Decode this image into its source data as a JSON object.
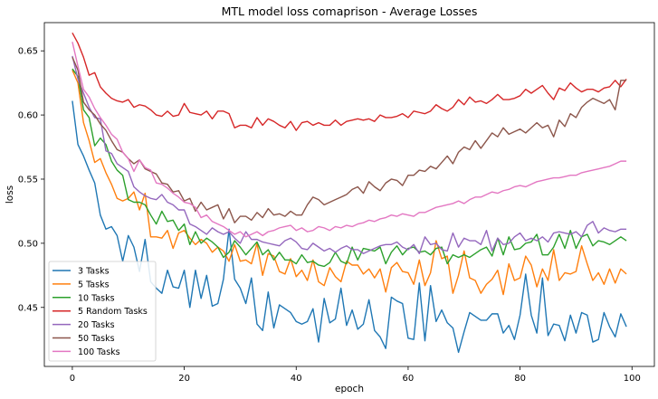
{
  "chart_data": {
    "type": "line",
    "title": "MTL model loss comaprison - Average Losses",
    "xlabel": "epoch",
    "ylabel": "loss",
    "xlim": [
      -5,
      104
    ],
    "ylim": [
      0.404,
      0.672
    ],
    "xticks": [
      0,
      20,
      40,
      60,
      80,
      100
    ],
    "yticks": [
      0.45,
      0.5,
      0.55,
      0.6,
      0.65
    ],
    "xtick_labels": [
      "0",
      "20",
      "40",
      "60",
      "80",
      "100"
    ],
    "ytick_labels": [
      "0.45",
      "0.50",
      "0.55",
      "0.60",
      "0.65"
    ],
    "grid": false,
    "legend": "lower-left",
    "series": [
      {
        "name": "3 Tasks",
        "color": "#1f77b4",
        "values": [
          0.611,
          0.577,
          0.568,
          0.557,
          0.547,
          0.522,
          0.511,
          0.513,
          0.506,
          0.486,
          0.506,
          0.497,
          0.478,
          0.503,
          0.47,
          0.465,
          0.461,
          0.479,
          0.466,
          0.465,
          0.479,
          0.45,
          0.479,
          0.457,
          0.475,
          0.451,
          0.453,
          0.472,
          0.511,
          0.472,
          0.465,
          0.453,
          0.473,
          0.437,
          0.432,
          0.462,
          0.434,
          0.452,
          0.449,
          0.446,
          0.439,
          0.437,
          0.439,
          0.449,
          0.423,
          0.457,
          0.438,
          0.441,
          0.465,
          0.436,
          0.448,
          0.433,
          0.437,
          0.456,
          0.432,
          0.427,
          0.418,
          0.458,
          0.455,
          0.453,
          0.426,
          0.425,
          0.469,
          0.424,
          0.467,
          0.439,
          0.448,
          0.438,
          0.434,
          0.415,
          0.431,
          0.446,
          0.443,
          0.44,
          0.44,
          0.445,
          0.445,
          0.43,
          0.436,
          0.425,
          0.444,
          0.476,
          0.444,
          0.43,
          0.473,
          0.428,
          0.437,
          0.436,
          0.424,
          0.444,
          0.43,
          0.446,
          0.444,
          0.423,
          0.425,
          0.446,
          0.435,
          0.427,
          0.445,
          0.435
        ]
      },
      {
        "name": "5 Tasks",
        "color": "#ff7f0e",
        "values": [
          0.635,
          0.625,
          0.594,
          0.58,
          0.563,
          0.566,
          0.555,
          0.546,
          0.535,
          0.533,
          0.535,
          0.54,
          0.526,
          0.539,
          0.505,
          0.505,
          0.504,
          0.51,
          0.496,
          0.508,
          0.51,
          0.504,
          0.499,
          0.503,
          0.5,
          0.493,
          0.497,
          0.494,
          0.486,
          0.499,
          0.486,
          0.487,
          0.484,
          0.5,
          0.475,
          0.492,
          0.49,
          0.478,
          0.476,
          0.488,
          0.474,
          0.479,
          0.471,
          0.487,
          0.47,
          0.467,
          0.481,
          0.474,
          0.47,
          0.486,
          0.483,
          0.483,
          0.476,
          0.48,
          0.473,
          0.48,
          0.462,
          0.481,
          0.485,
          0.478,
          0.477,
          0.468,
          0.487,
          0.467,
          0.477,
          0.502,
          0.488,
          0.49,
          0.461,
          0.475,
          0.494,
          0.473,
          0.471,
          0.461,
          0.468,
          0.472,
          0.479,
          0.46,
          0.484,
          0.471,
          0.473,
          0.49,
          0.483,
          0.466,
          0.48,
          0.471,
          0.495,
          0.471,
          0.477,
          0.476,
          0.478,
          0.498,
          0.484,
          0.471,
          0.477,
          0.468,
          0.48,
          0.469,
          0.48,
          0.476
        ]
      },
      {
        "name": "10 Tasks",
        "color": "#2ca02c",
        "values": [
          0.636,
          0.63,
          0.604,
          0.598,
          0.576,
          0.582,
          0.577,
          0.564,
          0.557,
          0.553,
          0.534,
          0.532,
          0.532,
          0.53,
          0.522,
          0.515,
          0.525,
          0.517,
          0.518,
          0.51,
          0.515,
          0.499,
          0.509,
          0.5,
          0.504,
          0.501,
          0.497,
          0.489,
          0.493,
          0.502,
          0.497,
          0.491,
          0.496,
          0.501,
          0.491,
          0.495,
          0.487,
          0.493,
          0.487,
          0.487,
          0.484,
          0.491,
          0.485,
          0.486,
          0.483,
          0.482,
          0.485,
          0.493,
          0.486,
          0.484,
          0.497,
          0.487,
          0.496,
          0.495,
          0.494,
          0.497,
          0.484,
          0.493,
          0.498,
          0.491,
          0.496,
          0.497,
          0.493,
          0.494,
          0.491,
          0.496,
          0.497,
          0.484,
          0.491,
          0.489,
          0.491,
          0.489,
          0.492,
          0.495,
          0.497,
          0.49,
          0.504,
          0.491,
          0.505,
          0.495,
          0.496,
          0.5,
          0.501,
          0.507,
          0.491,
          0.491,
          0.497,
          0.507,
          0.496,
          0.51,
          0.496,
          0.505,
          0.507,
          0.498,
          0.502,
          0.501,
          0.499,
          0.502,
          0.505,
          0.502
        ]
      },
      {
        "name": "5 Random Tasks",
        "color": "#d62728",
        "values": [
          0.664,
          0.656,
          0.645,
          0.631,
          0.633,
          0.622,
          0.617,
          0.613,
          0.611,
          0.61,
          0.612,
          0.606,
          0.608,
          0.607,
          0.604,
          0.6,
          0.599,
          0.603,
          0.599,
          0.6,
          0.609,
          0.602,
          0.601,
          0.6,
          0.603,
          0.597,
          0.603,
          0.603,
          0.601,
          0.59,
          0.592,
          0.592,
          0.59,
          0.598,
          0.592,
          0.597,
          0.595,
          0.592,
          0.59,
          0.595,
          0.588,
          0.594,
          0.595,
          0.592,
          0.594,
          0.592,
          0.592,
          0.596,
          0.592,
          0.595,
          0.596,
          0.597,
          0.596,
          0.597,
          0.595,
          0.6,
          0.598,
          0.598,
          0.599,
          0.601,
          0.598,
          0.603,
          0.602,
          0.601,
          0.603,
          0.608,
          0.605,
          0.603,
          0.606,
          0.612,
          0.608,
          0.614,
          0.61,
          0.611,
          0.609,
          0.612,
          0.616,
          0.612,
          0.612,
          0.613,
          0.615,
          0.62,
          0.617,
          0.62,
          0.623,
          0.617,
          0.612,
          0.621,
          0.619,
          0.625,
          0.621,
          0.618,
          0.62,
          0.62,
          0.618,
          0.621,
          0.622,
          0.627,
          0.622,
          0.628
        ]
      },
      {
        "name": "20 Tasks",
        "color": "#9467bd",
        "values": [
          0.646,
          0.628,
          0.617,
          0.606,
          0.598,
          0.597,
          0.572,
          0.57,
          0.562,
          0.559,
          0.556,
          0.544,
          0.54,
          0.537,
          0.535,
          0.534,
          0.538,
          0.532,
          0.53,
          0.526,
          0.526,
          0.515,
          0.513,
          0.51,
          0.507,
          0.512,
          0.509,
          0.507,
          0.509,
          0.504,
          0.5,
          0.509,
          0.503,
          0.503,
          0.501,
          0.5,
          0.499,
          0.498,
          0.502,
          0.504,
          0.501,
          0.496,
          0.495,
          0.5,
          0.497,
          0.494,
          0.496,
          0.493,
          0.496,
          0.498,
          0.495,
          0.495,
          0.492,
          0.494,
          0.496,
          0.498,
          0.499,
          0.499,
          0.501,
          0.497,
          0.495,
          0.499,
          0.492,
          0.505,
          0.499,
          0.5,
          0.495,
          0.494,
          0.508,
          0.497,
          0.504,
          0.502,
          0.502,
          0.499,
          0.51,
          0.494,
          0.504,
          0.499,
          0.5,
          0.505,
          0.508,
          0.502,
          0.504,
          0.502,
          0.505,
          0.501,
          0.508,
          0.509,
          0.508,
          0.507,
          0.509,
          0.505,
          0.514,
          0.517,
          0.508,
          0.512,
          0.51,
          0.509,
          0.511,
          0.511
        ]
      },
      {
        "name": "50 Tasks",
        "color": "#8c564b",
        "values": [
          0.645,
          0.635,
          0.61,
          0.604,
          0.6,
          0.593,
          0.588,
          0.58,
          0.573,
          0.571,
          0.566,
          0.562,
          0.565,
          0.558,
          0.556,
          0.554,
          0.547,
          0.546,
          0.54,
          0.541,
          0.533,
          0.535,
          0.525,
          0.532,
          0.526,
          0.528,
          0.53,
          0.519,
          0.527,
          0.516,
          0.521,
          0.521,
          0.518,
          0.524,
          0.52,
          0.527,
          0.522,
          0.523,
          0.521,
          0.525,
          0.522,
          0.522,
          0.53,
          0.536,
          0.534,
          0.53,
          0.532,
          0.534,
          0.536,
          0.538,
          0.542,
          0.544,
          0.539,
          0.548,
          0.544,
          0.541,
          0.547,
          0.55,
          0.549,
          0.545,
          0.553,
          0.553,
          0.557,
          0.556,
          0.56,
          0.558,
          0.563,
          0.568,
          0.562,
          0.571,
          0.575,
          0.573,
          0.58,
          0.574,
          0.58,
          0.586,
          0.583,
          0.59,
          0.585,
          0.587,
          0.589,
          0.586,
          0.59,
          0.594,
          0.59,
          0.592,
          0.583,
          0.596,
          0.591,
          0.601,
          0.598,
          0.606,
          0.61,
          0.613,
          0.611,
          0.609,
          0.612,
          0.604,
          0.627,
          0.627
        ]
      },
      {
        "name": "100 Tasks",
        "color": "#e377c2",
        "values": [
          0.657,
          0.638,
          0.62,
          0.614,
          0.605,
          0.598,
          0.592,
          0.585,
          0.581,
          0.571,
          0.566,
          0.556,
          0.565,
          0.559,
          0.557,
          0.547,
          0.546,
          0.543,
          0.539,
          0.536,
          0.532,
          0.531,
          0.528,
          0.52,
          0.522,
          0.517,
          0.515,
          0.513,
          0.51,
          0.507,
          0.509,
          0.505,
          0.507,
          0.509,
          0.506,
          0.509,
          0.51,
          0.512,
          0.513,
          0.514,
          0.51,
          0.512,
          0.509,
          0.51,
          0.513,
          0.512,
          0.51,
          0.513,
          0.512,
          0.514,
          0.513,
          0.515,
          0.516,
          0.518,
          0.517,
          0.519,
          0.52,
          0.522,
          0.521,
          0.523,
          0.522,
          0.521,
          0.524,
          0.524,
          0.526,
          0.528,
          0.529,
          0.53,
          0.531,
          0.533,
          0.531,
          0.534,
          0.536,
          0.536,
          0.538,
          0.54,
          0.539,
          0.541,
          0.542,
          0.544,
          0.545,
          0.544,
          0.546,
          0.548,
          0.549,
          0.55,
          0.551,
          0.551,
          0.552,
          0.553,
          0.553,
          0.555,
          0.556,
          0.557,
          0.558,
          0.559,
          0.56,
          0.562,
          0.564,
          0.564
        ]
      }
    ]
  }
}
